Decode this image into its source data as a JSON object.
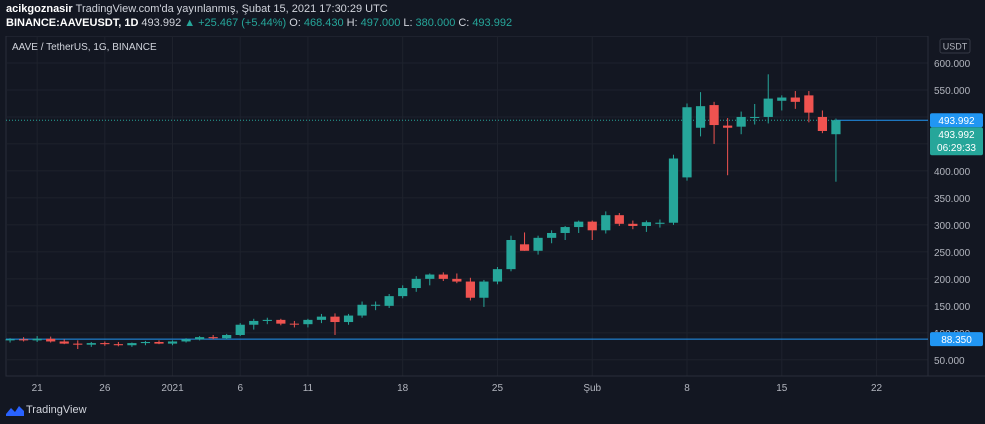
{
  "header": {
    "author": "acikgoznasir",
    "published": "TradingView.com'da yayınlanmış, Şubat 15, 2021 17:30:29 UTC",
    "symbol": "BINANCE:AAVEUSDT, 1D",
    "last": "493.992",
    "change": "▲ +25.467 (+5.44%)",
    "open_label": "O:",
    "open": "468.430",
    "high_label": "H:",
    "high": "497.000",
    "low_label": "L:",
    "low": "380.000",
    "close_label": "C:",
    "close": "493.992"
  },
  "footer": {
    "brand": "TradingView"
  },
  "colors": {
    "up": "#26a69a",
    "down": "#ef5350",
    "background": "#131722",
    "grid": "#1e222d",
    "price_tag": "#2196f3"
  },
  "chart_data": {
    "type": "candlestick",
    "title": "AAVE / TetherUS, 1G, BINANCE",
    "currency": "USDT",
    "x_tick_labels": [
      "21",
      "26",
      "2021",
      "6",
      "11",
      "18",
      "25",
      "Şub",
      "8",
      "15",
      "22"
    ],
    "x_tick_indices": [
      2,
      7,
      12,
      17,
      22,
      29,
      36,
      43,
      50,
      57,
      64
    ],
    "y_ticks": [
      50,
      100,
      150,
      200,
      250,
      300,
      350,
      400,
      450,
      500,
      550,
      600
    ],
    "y_tick_labels": [
      "50.000",
      "100.000",
      "150.000",
      "200.000",
      "250.000",
      "300.000",
      "350.000",
      "400.000",
      "450.000",
      "500.000",
      "550.000",
      "600.000"
    ],
    "ylim": [
      20,
      650
    ],
    "x_range": [
      -0.3,
      67.8
    ],
    "price_lines": [
      {
        "label": "493.992",
        "value": 493.992,
        "color": "#2196f3"
      },
      {
        "label": "88.350",
        "value": 88.35,
        "color": "#2196f3"
      }
    ],
    "last_price_tag": {
      "price": "493.992",
      "countdown": "06:29:33",
      "color": "#26a69a"
    },
    "candles": [
      {
        "o": 86,
        "h": 90,
        "l": 82,
        "c": 88
      },
      {
        "o": 88,
        "h": 92,
        "l": 84,
        "c": 86
      },
      {
        "o": 86,
        "h": 94,
        "l": 83,
        "c": 89
      },
      {
        "o": 89,
        "h": 93,
        "l": 82,
        "c": 84
      },
      {
        "o": 84,
        "h": 88,
        "l": 79,
        "c": 80
      },
      {
        "o": 80,
        "h": 86,
        "l": 70,
        "c": 78
      },
      {
        "o": 78,
        "h": 83,
        "l": 74,
        "c": 81
      },
      {
        "o": 81,
        "h": 84,
        "l": 76,
        "c": 79
      },
      {
        "o": 79,
        "h": 83,
        "l": 75,
        "c": 77
      },
      {
        "o": 77,
        "h": 82,
        "l": 74,
        "c": 81
      },
      {
        "o": 81,
        "h": 85,
        "l": 77,
        "c": 83
      },
      {
        "o": 83,
        "h": 86,
        "l": 79,
        "c": 80
      },
      {
        "o": 80,
        "h": 86,
        "l": 77,
        "c": 84
      },
      {
        "o": 84,
        "h": 90,
        "l": 82,
        "c": 88
      },
      {
        "o": 88,
        "h": 94,
        "l": 86,
        "c": 92
      },
      {
        "o": 92,
        "h": 96,
        "l": 88,
        "c": 90
      },
      {
        "o": 90,
        "h": 98,
        "l": 88,
        "c": 96
      },
      {
        "o": 96,
        "h": 118,
        "l": 94,
        "c": 115
      },
      {
        "o": 115,
        "h": 126,
        "l": 106,
        "c": 122
      },
      {
        "o": 122,
        "h": 128,
        "l": 116,
        "c": 124
      },
      {
        "o": 124,
        "h": 126,
        "l": 114,
        "c": 117
      },
      {
        "o": 117,
        "h": 122,
        "l": 110,
        "c": 116
      },
      {
        "o": 116,
        "h": 126,
        "l": 110,
        "c": 124
      },
      {
        "o": 124,
        "h": 135,
        "l": 118,
        "c": 130
      },
      {
        "o": 130,
        "h": 136,
        "l": 96,
        "c": 120
      },
      {
        "o": 120,
        "h": 135,
        "l": 115,
        "c": 132
      },
      {
        "o": 132,
        "h": 158,
        "l": 128,
        "c": 152
      },
      {
        "o": 152,
        "h": 158,
        "l": 142,
        "c": 152
      },
      {
        "o": 150,
        "h": 172,
        "l": 146,
        "c": 168
      },
      {
        "o": 168,
        "h": 188,
        "l": 164,
        "c": 183
      },
      {
        "o": 183,
        "h": 205,
        "l": 176,
        "c": 200
      },
      {
        "o": 200,
        "h": 210,
        "l": 188,
        "c": 208
      },
      {
        "o": 208,
        "h": 212,
        "l": 196,
        "c": 200
      },
      {
        "o": 200,
        "h": 210,
        "l": 192,
        "c": 195
      },
      {
        "o": 195,
        "h": 202,
        "l": 160,
        "c": 165
      },
      {
        "o": 165,
        "h": 198,
        "l": 148,
        "c": 195
      },
      {
        "o": 195,
        "h": 222,
        "l": 190,
        "c": 218
      },
      {
        "o": 218,
        "h": 280,
        "l": 214,
        "c": 272
      },
      {
        "o": 264,
        "h": 286,
        "l": 252,
        "c": 252
      },
      {
        "o": 252,
        "h": 280,
        "l": 245,
        "c": 276
      },
      {
        "o": 276,
        "h": 290,
        "l": 266,
        "c": 285
      },
      {
        "o": 285,
        "h": 298,
        "l": 272,
        "c": 296
      },
      {
        "o": 296,
        "h": 308,
        "l": 285,
        "c": 306
      },
      {
        "o": 306,
        "h": 308,
        "l": 272,
        "c": 290
      },
      {
        "o": 290,
        "h": 325,
        "l": 284,
        "c": 318
      },
      {
        "o": 318,
        "h": 322,
        "l": 298,
        "c": 302
      },
      {
        "o": 302,
        "h": 308,
        "l": 292,
        "c": 298
      },
      {
        "o": 298,
        "h": 308,
        "l": 287,
        "c": 305
      },
      {
        "o": 302,
        "h": 310,
        "l": 295,
        "c": 304
      },
      {
        "o": 304,
        "h": 430,
        "l": 300,
        "c": 423
      },
      {
        "o": 388,
        "h": 525,
        "l": 382,
        "c": 518
      },
      {
        "o": 480,
        "h": 546,
        "l": 464,
        "c": 520
      },
      {
        "o": 522,
        "h": 528,
        "l": 450,
        "c": 485
      },
      {
        "o": 484,
        "h": 498,
        "l": 392,
        "c": 480
      },
      {
        "o": 482,
        "h": 510,
        "l": 468,
        "c": 500
      },
      {
        "o": 500,
        "h": 524,
        "l": 486,
        "c": 500
      },
      {
        "o": 500,
        "h": 579,
        "l": 488,
        "c": 534
      },
      {
        "o": 530,
        "h": 540,
        "l": 512,
        "c": 536
      },
      {
        "o": 536,
        "h": 548,
        "l": 515,
        "c": 528
      },
      {
        "o": 540,
        "h": 548,
        "l": 490,
        "c": 508
      },
      {
        "o": 500,
        "h": 512,
        "l": 470,
        "c": 474
      },
      {
        "o": 468,
        "h": 497,
        "l": 380,
        "c": 494
      }
    ]
  }
}
